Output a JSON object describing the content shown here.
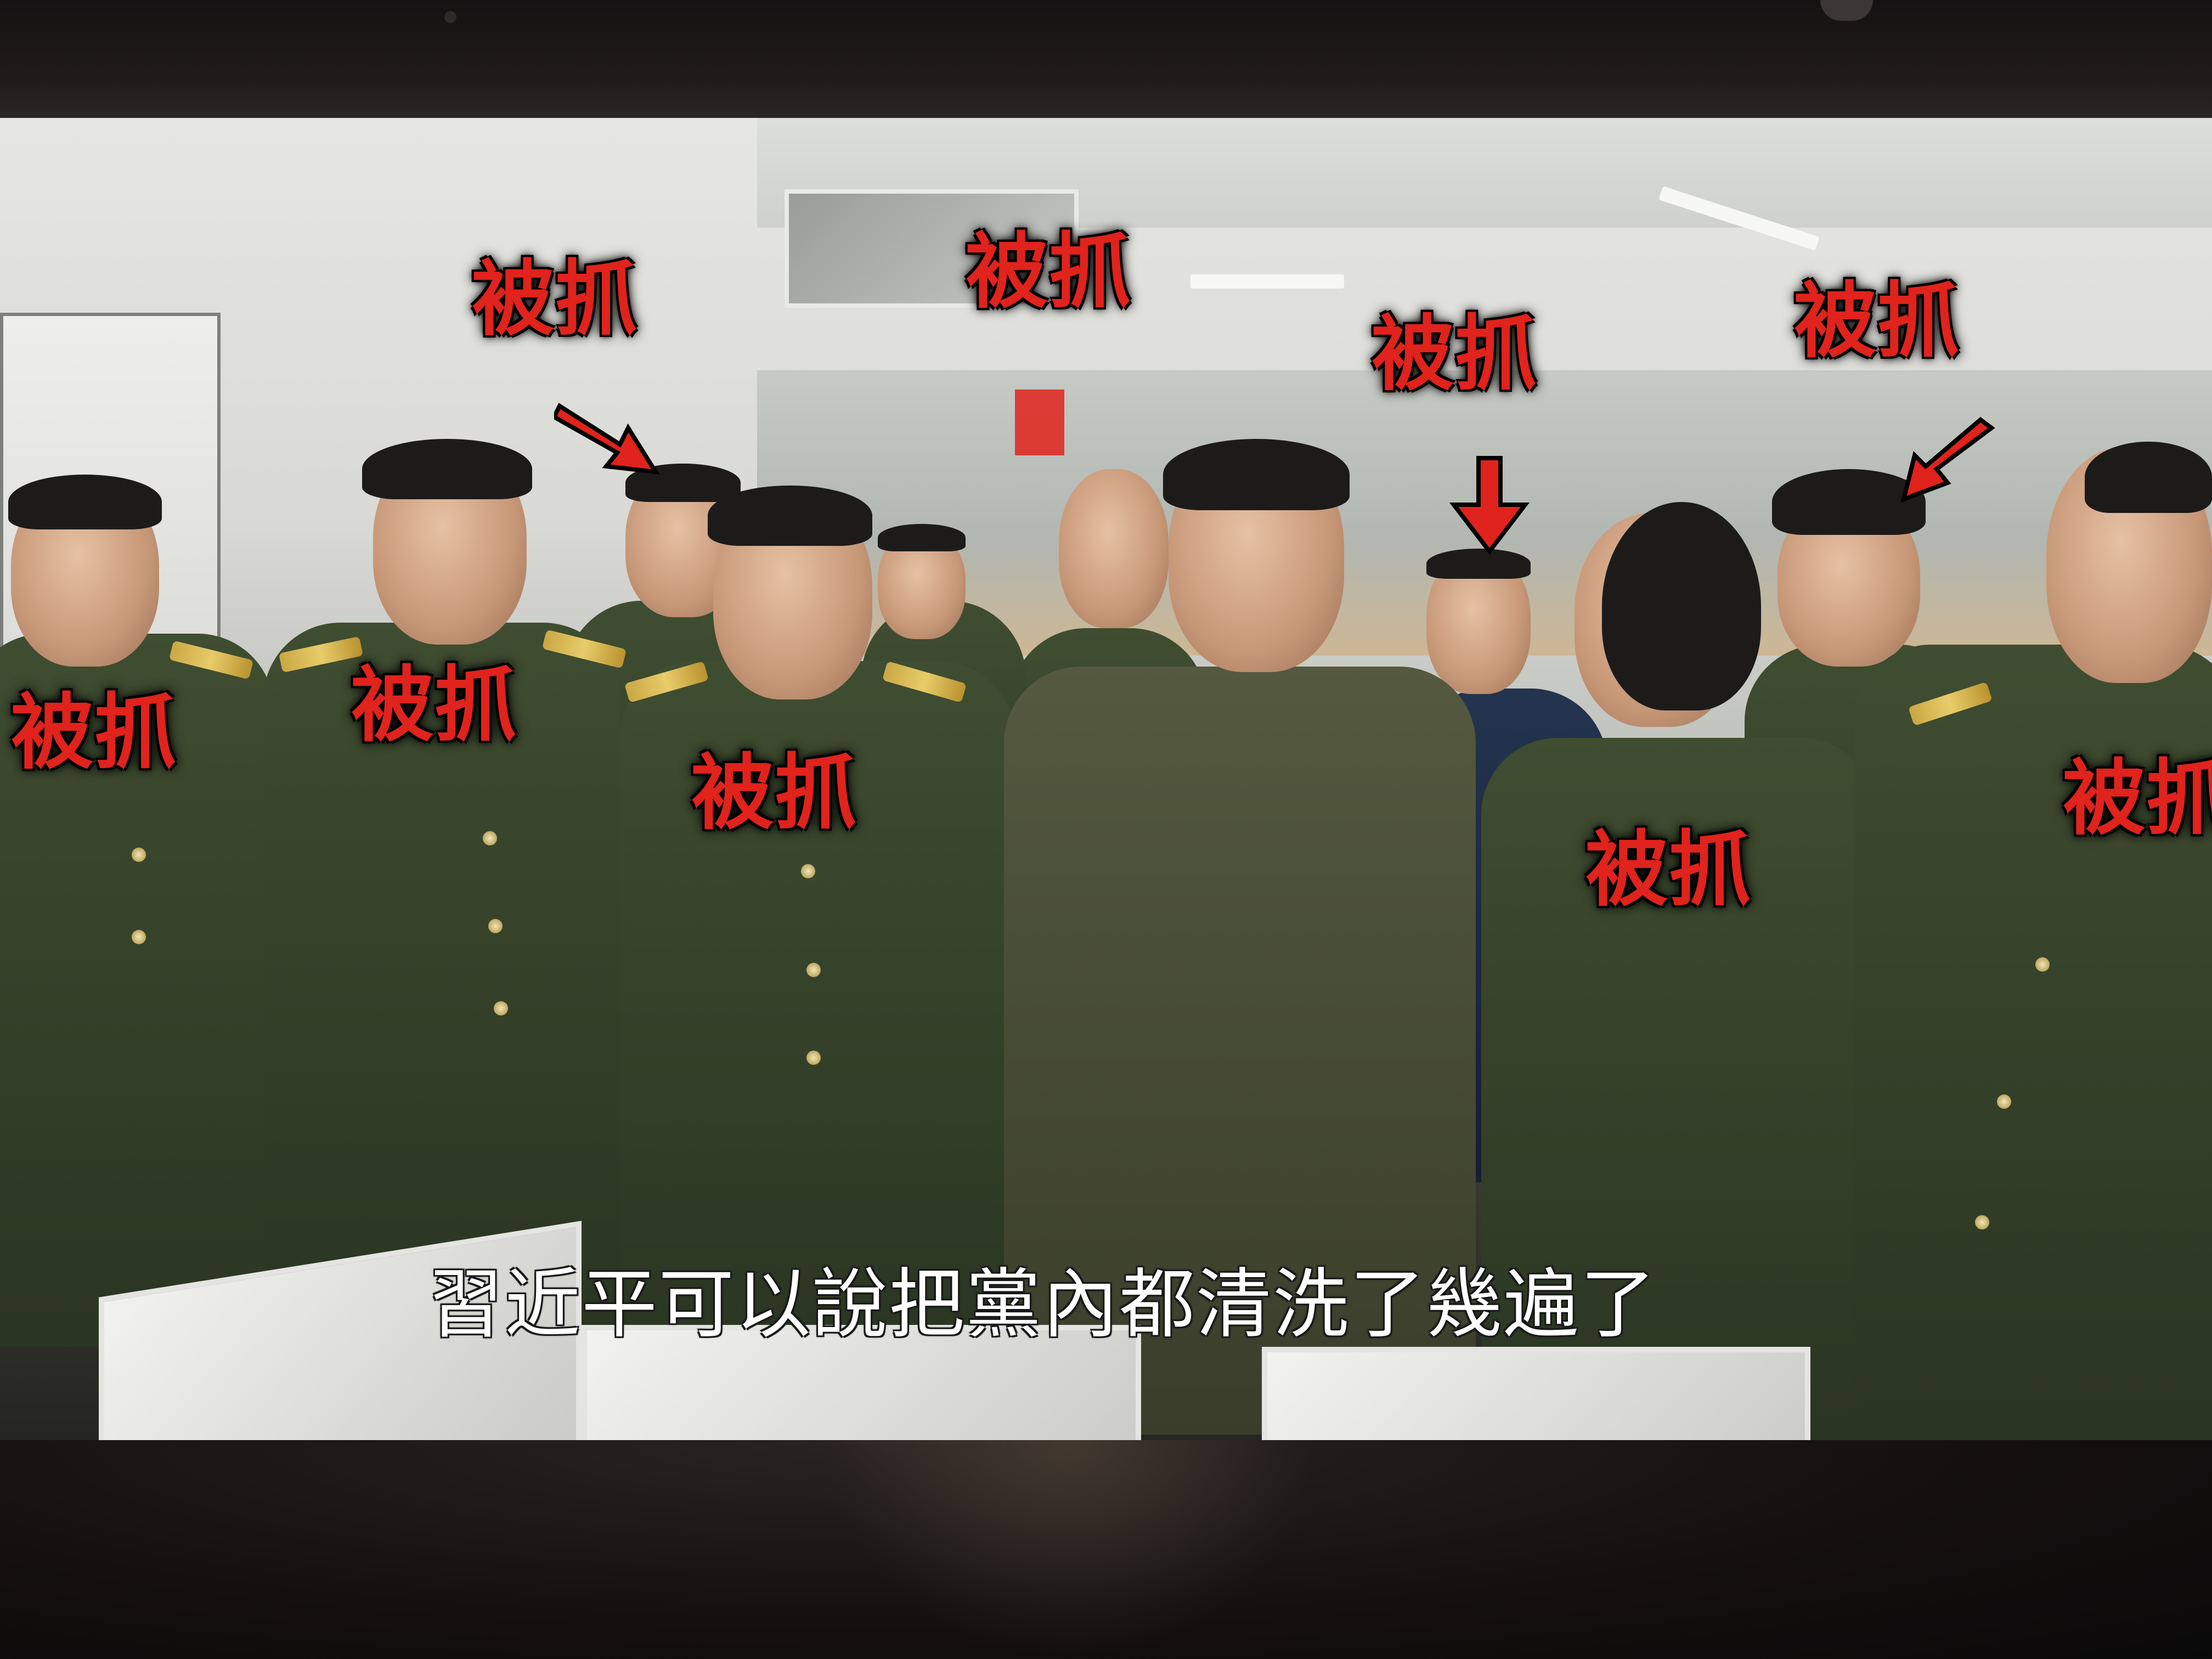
{
  "video": {
    "subtitle": "習近平可以說把黨內都清洗了幾遍了"
  },
  "labels": [
    {
      "id": "label-1",
      "text": "被抓"
    },
    {
      "id": "label-2",
      "text": "被抓"
    },
    {
      "id": "label-3",
      "text": "被抓"
    },
    {
      "id": "label-4",
      "text": "被抓"
    },
    {
      "id": "label-5",
      "text": "被抓"
    },
    {
      "id": "label-6",
      "text": "被抓"
    },
    {
      "id": "label-7",
      "text": "被抓"
    },
    {
      "id": "label-8",
      "text": "被抓"
    },
    {
      "id": "label-9",
      "text": "被抓"
    }
  ],
  "colors": {
    "label_red": "#e0231c",
    "uniform_green": "#3f4d31",
    "epaulet_gold": "#c9a744",
    "subtitle_white": "#ffffff"
  },
  "icons": [
    "red-arrow-icon"
  ]
}
